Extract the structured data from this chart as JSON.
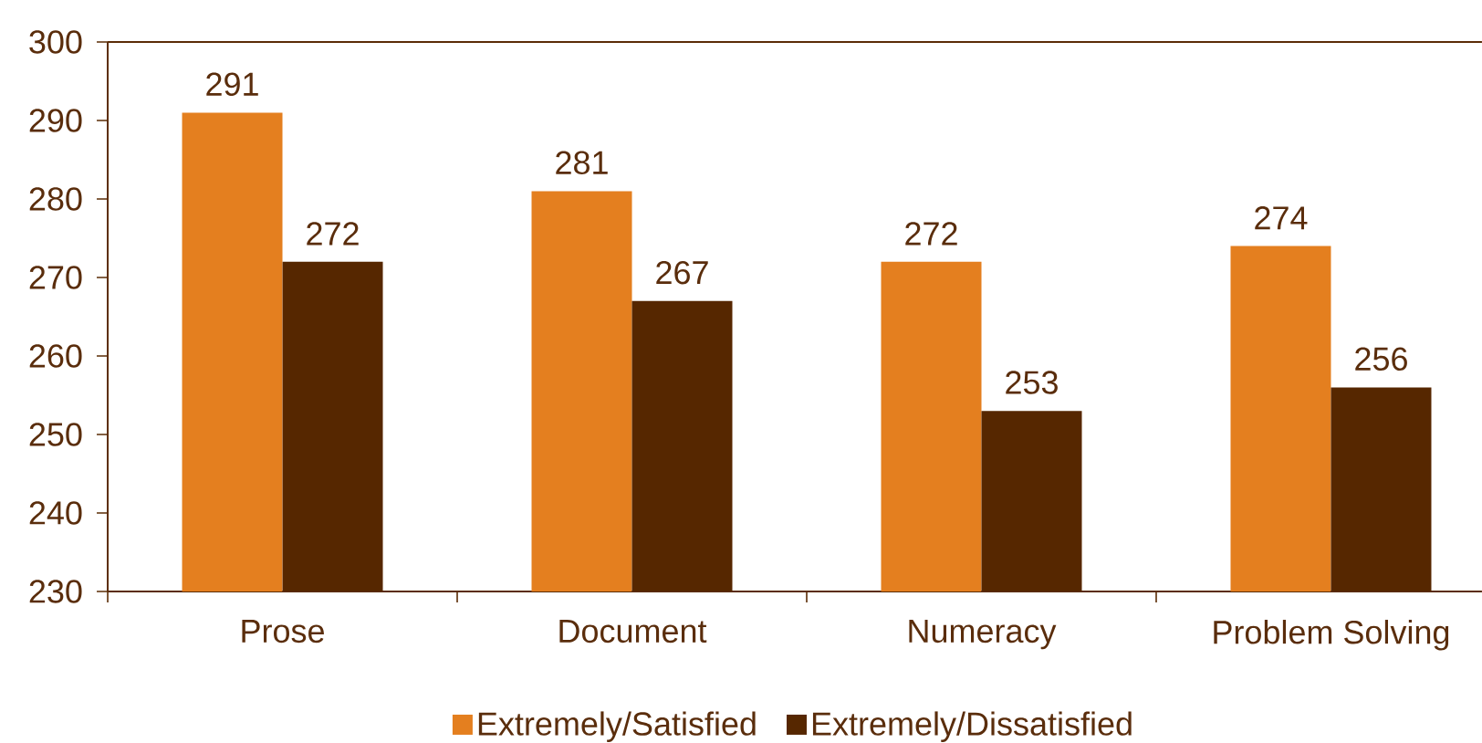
{
  "chart_data": {
    "type": "bar",
    "categories": [
      "Prose",
      "Document",
      "Numeracy",
      "Problem Solving"
    ],
    "series": [
      {
        "name": "Extremely/Satisfied",
        "color": "#e47f1f",
        "values": [
          291,
          281,
          272,
          274
        ]
      },
      {
        "name": "Extremely/Dissatisfied",
        "color": "#562700",
        "values": [
          272,
          267,
          253,
          256
        ]
      }
    ],
    "ylim": [
      230,
      300
    ],
    "yticks": [
      230,
      240,
      250,
      260,
      270,
      280,
      290,
      300
    ],
    "legend": "bottom",
    "data_labels": true
  }
}
